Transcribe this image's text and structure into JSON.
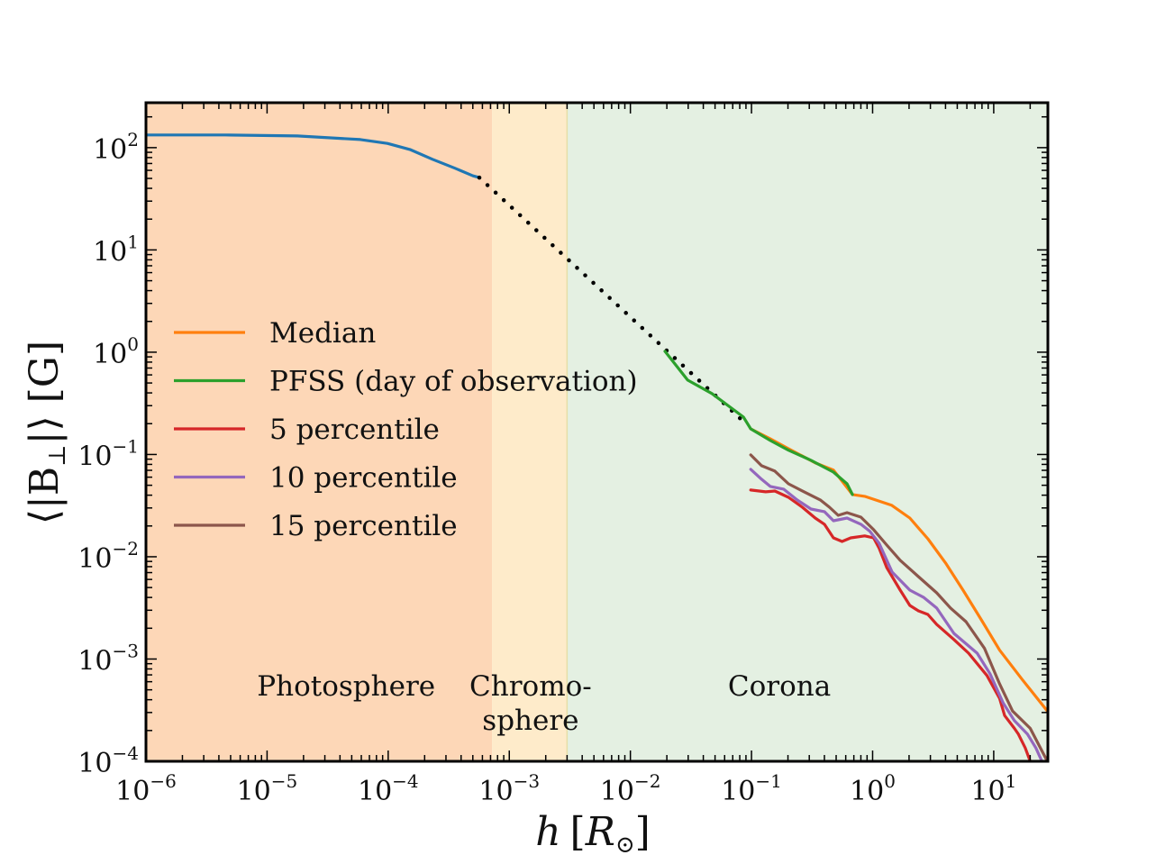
{
  "chart_data": {
    "type": "line",
    "title": "",
    "xlabel": "h [R☉]",
    "xlabel_parts": {
      "var": "h",
      "unit": "R",
      "sub": "⊙"
    },
    "ylabel": "⟨|B⊥|⟩ [G]",
    "xscale": "log",
    "yscale": "log",
    "xlim": [
      1e-06,
      28
    ],
    "ylim": [
      0.0001,
      275
    ],
    "grid": false,
    "legend_position": "center-left",
    "x_ticks": [
      {
        "value": 1e-06,
        "base": "10",
        "exp": "−6"
      },
      {
        "value": 1e-05,
        "base": "10",
        "exp": "−5"
      },
      {
        "value": 0.0001,
        "base": "10",
        "exp": "−4"
      },
      {
        "value": 0.001,
        "base": "10",
        "exp": "−3"
      },
      {
        "value": 0.01,
        "base": "10",
        "exp": "−2"
      },
      {
        "value": 0.1,
        "base": "10",
        "exp": "−1"
      },
      {
        "value": 1,
        "base": "10",
        "exp": "0"
      },
      {
        "value": 10,
        "base": "10",
        "exp": "1"
      }
    ],
    "y_ticks": [
      {
        "value": 0.0001,
        "base": "10",
        "exp": "−4"
      },
      {
        "value": 0.001,
        "base": "10",
        "exp": "−3"
      },
      {
        "value": 0.01,
        "base": "10",
        "exp": "−2"
      },
      {
        "value": 0.1,
        "base": "10",
        "exp": "−1"
      },
      {
        "value": 1,
        "base": "10",
        "exp": "0"
      },
      {
        "value": 10,
        "base": "10",
        "exp": "1"
      },
      {
        "value": 100,
        "base": "10",
        "exp": "2"
      }
    ],
    "regions": [
      {
        "name": "Photosphere",
        "label_lines": [
          "Photosphere"
        ],
        "x_range": [
          1e-06,
          0.00072
        ],
        "color": "#fdd7b7",
        "label_x": 4.5e-05,
        "label_y": 0.00044
      },
      {
        "name": "Chromosphere",
        "label_lines": [
          "Chromo-",
          "sphere"
        ],
        "x_range": [
          0.00072,
          0.003
        ],
        "color": "#feebca",
        "label_x": 0.0015,
        "label_y": 0.00044
      },
      {
        "name": "Corona",
        "label_lines": [
          "Corona"
        ],
        "x_range": [
          0.003,
          28
        ],
        "color": "#e4f0e2",
        "label_x": 0.17,
        "label_y": 0.00044
      }
    ],
    "series": [
      {
        "name": "Photosphere model",
        "in_legend": false,
        "color": "#1f77b4",
        "style": "solid",
        "x": [
          1e-06,
          4.5e-06,
          1.78e-05,
          5.9e-05,
          9.86e-05,
          0.000151,
          0.000232,
          0.000356,
          0.000502,
          0.000566
        ],
        "y": [
          133,
          133,
          130,
          120,
          110,
          96,
          77,
          63,
          53,
          51
        ]
      },
      {
        "name": "Power-law extrapolation",
        "in_legend": false,
        "color": "#000000",
        "style": "dotted",
        "x": [
          0.000566,
          0.09
        ],
        "y": [
          51,
          0.2
        ]
      },
      {
        "name": "Median",
        "in_legend": true,
        "color": "#ff7f0e",
        "style": "solid",
        "x": [
          0.0986,
          0.143,
          0.202,
          0.336,
          0.475,
          0.681,
          0.86,
          1.44,
          2.03,
          2.86,
          4.0,
          5.6,
          7.9,
          11.2,
          17.2,
          27.7
        ],
        "y": [
          0.178,
          0.142,
          0.114,
          0.0829,
          0.0705,
          0.0406,
          0.039,
          0.0318,
          0.0239,
          0.015,
          0.0087,
          0.0047,
          0.00242,
          0.00122,
          0.00063,
          0.00031
        ]
      },
      {
        "name": "PFSS (day of observation)",
        "in_legend": true,
        "color": "#2ca02c",
        "style": "solid",
        "x": [
          0.0193,
          0.0297,
          0.0471,
          0.0858,
          0.0986,
          0.143,
          0.202,
          0.31,
          0.475,
          0.615,
          0.681
        ],
        "y": [
          1.02,
          0.533,
          0.394,
          0.232,
          0.178,
          0.137,
          0.11,
          0.0878,
          0.0673,
          0.0517,
          0.0406
        ]
      },
      {
        "name": "5 percentile",
        "in_legend": true,
        "color": "#d62728",
        "style": "solid",
        "x": [
          0.0986,
          0.131,
          0.156,
          0.202,
          0.263,
          0.336,
          0.4,
          0.475,
          0.56,
          0.66,
          0.86,
          1.02,
          1.13,
          1.31,
          1.69,
          2.03,
          2.39,
          2.86,
          3.38,
          4.7,
          6.2,
          8.8,
          11.2,
          12.3,
          14.8,
          16.0,
          18.2,
          20.0
        ],
        "y": [
          0.0449,
          0.0431,
          0.0439,
          0.0381,
          0.0305,
          0.0239,
          0.0208,
          0.0153,
          0.0141,
          0.0153,
          0.016,
          0.0153,
          0.0122,
          0.00783,
          0.00472,
          0.00334,
          0.00296,
          0.00273,
          0.00218,
          0.00155,
          0.00114,
          0.00069,
          0.00041,
          0.00028,
          0.00021,
          0.000184,
          0.000135,
          0.0001
        ]
      },
      {
        "name": "10 percentile",
        "in_legend": true,
        "color": "#9467bd",
        "style": "solid",
        "x": [
          0.0986,
          0.121,
          0.143,
          0.184,
          0.238,
          0.31,
          0.4,
          0.475,
          0.615,
          0.8,
          0.95,
          1.13,
          1.45,
          2.03,
          2.63,
          3.38,
          4.7,
          7.3,
          9.3,
          12.0,
          14.8,
          19.0,
          22.3,
          25.0
        ],
        "y": [
          0.0716,
          0.0573,
          0.0487,
          0.0458,
          0.0359,
          0.0293,
          0.0276,
          0.0225,
          0.0239,
          0.0208,
          0.0177,
          0.0136,
          0.00708,
          0.00472,
          0.00402,
          0.00315,
          0.00178,
          0.00114,
          0.00072,
          0.00037,
          0.00025,
          0.000184,
          0.000135,
          0.0001
        ]
      },
      {
        "name": "15 percentile",
        "in_legend": true,
        "color": "#8c564b",
        "style": "solid",
        "x": [
          0.0986,
          0.121,
          0.156,
          0.202,
          0.263,
          0.37,
          0.44,
          0.52,
          0.615,
          0.8,
          1.02,
          1.31,
          1.69,
          2.39,
          3.38,
          4.4,
          5.9,
          8.4,
          11.2,
          14.3,
          20.0,
          27.7
        ],
        "y": [
          0.099,
          0.0777,
          0.0687,
          0.0517,
          0.044,
          0.0359,
          0.0305,
          0.0254,
          0.027,
          0.0244,
          0.0184,
          0.013,
          0.00923,
          0.0064,
          0.00444,
          0.00315,
          0.00232,
          0.00127,
          0.00057,
          0.00031,
          0.00021,
          0.0001
        ]
      }
    ]
  },
  "legend": {
    "items": [
      {
        "label": "Median",
        "color": "#ff7f0e"
      },
      {
        "label": "PFSS (day of observation)",
        "color": "#2ca02c"
      },
      {
        "label": "5 percentile",
        "color": "#d62728"
      },
      {
        "label": "10 percentile",
        "color": "#9467bd"
      },
      {
        "label": "15 percentile",
        "color": "#8c564b"
      }
    ]
  },
  "axes": {
    "x_label_var": "h",
    "x_label_open": "[",
    "x_label_unit": "R",
    "x_label_sub": "⊙",
    "x_label_close": "]",
    "y_label_text": "⟨|B",
    "y_label_sub": "⊥",
    "y_label_rest": "|⟩ [G]"
  }
}
